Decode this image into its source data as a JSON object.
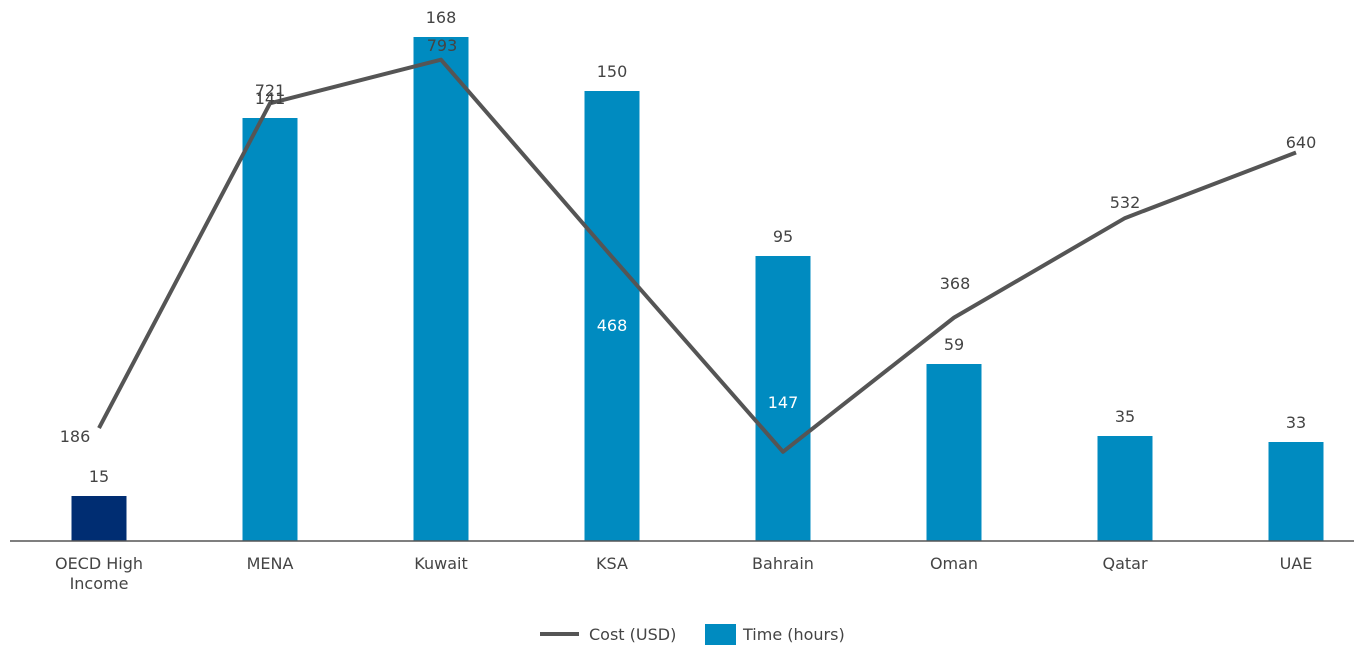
{
  "chart_data": {
    "type": "bar",
    "title": "",
    "xlabel": "",
    "ylabel": "",
    "categories": [
      "OECD High Income",
      "MENA",
      "Kuwait",
      "KSA",
      "Bahrain",
      "Oman",
      "Qatar",
      "UAE"
    ],
    "series": [
      {
        "name": "Time (hours)",
        "kind": "bar",
        "values": [
          15,
          141,
          168,
          150,
          95,
          59,
          35,
          33
        ],
        "color": "#008BC0",
        "highlight_color": "#002D72",
        "highlight_index": 0
      },
      {
        "name": "Cost (USD)",
        "kind": "line",
        "values": [
          186,
          721,
          793,
          468,
          147,
          368,
          532,
          640
        ],
        "color": "#555555"
      }
    ],
    "legend_position": "bottom-center",
    "grid": false
  }
}
